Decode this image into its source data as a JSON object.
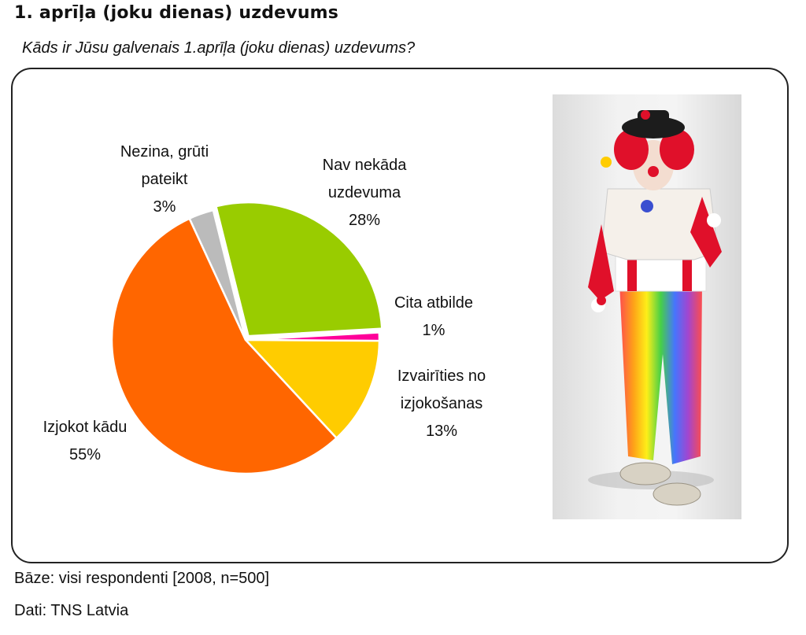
{
  "title": "1. aprīļa (joku dienas) uzdevums",
  "subtitle": "Kāds ir Jūsu galvenais 1.aprīļa (joku dienas) uzdevums?",
  "footer": {
    "base": "Bāze: visi respondenti [2008, n=500]",
    "source": "Dati: TNS Latvia"
  },
  "chart_data": {
    "type": "pie",
    "unit": "%",
    "slices": [
      {
        "label_lines": [
          "Nav nekāda",
          "uzdevuma"
        ],
        "value": 28,
        "value_text": "28%",
        "color": "#99cc00"
      },
      {
        "label_lines": [
          "Cita atbilde"
        ],
        "value": 1,
        "value_text": "1%",
        "color": "#ff0099"
      },
      {
        "label_lines": [
          "Izvairīties no",
          "izjokošanas"
        ],
        "value": 13,
        "value_text": "13%",
        "color": "#ffcc00"
      },
      {
        "label_lines": [
          "Izjokot kādu"
        ],
        "value": 55,
        "value_text": "55%",
        "color": "#ff6600"
      },
      {
        "label_lines": [
          "Nezina, grūti",
          "pateikt"
        ],
        "value": 3,
        "value_text": "3%",
        "color": "#bbbbbb"
      }
    ]
  },
  "image": {
    "subject": "clown-juggling-photo"
  }
}
